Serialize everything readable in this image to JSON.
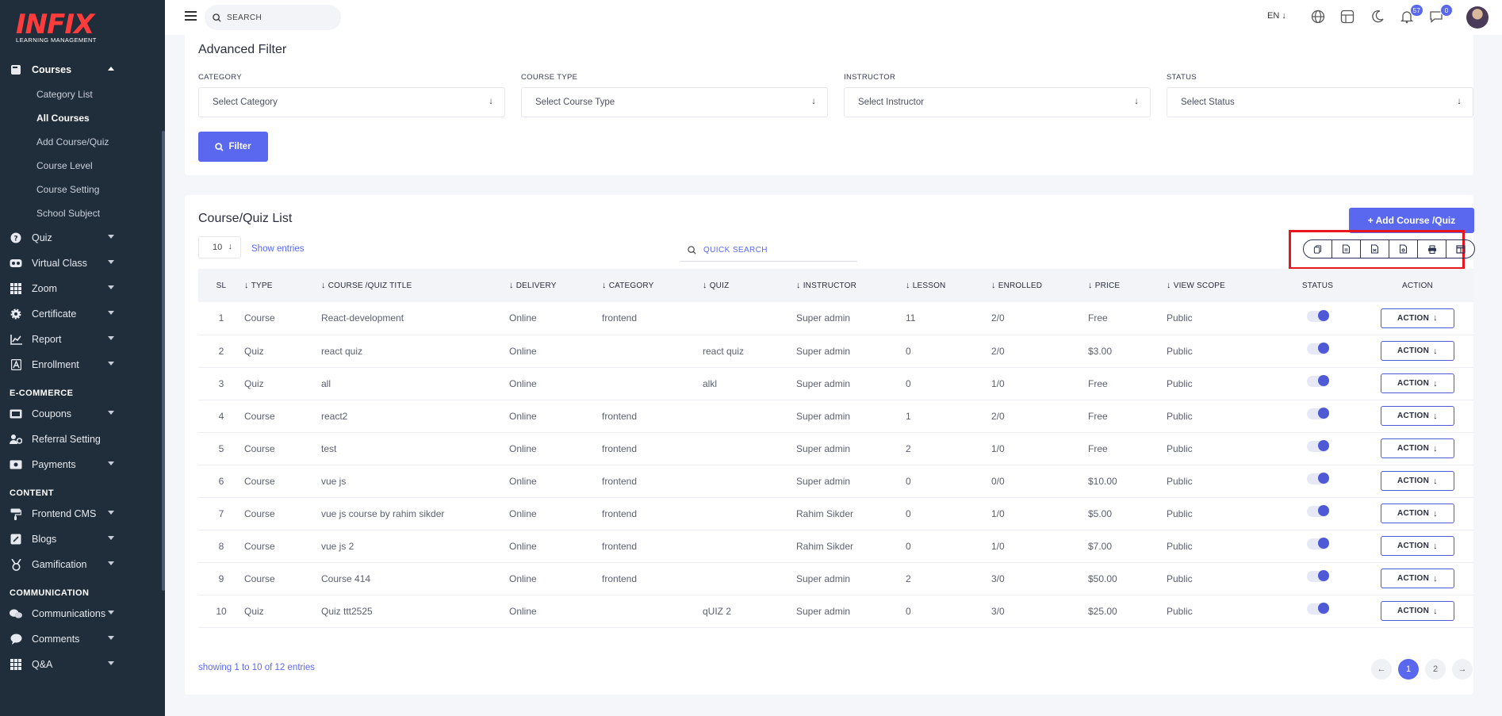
{
  "brand": {
    "logo_text": "INFIX",
    "logo_sub": "LEARNING MANAGEMENT"
  },
  "sidebar": {
    "courses": {
      "label": "Courses",
      "items": [
        "Category List",
        "All Courses",
        "Add Course/Quiz",
        "Course Level",
        "Course Setting",
        "School Subject"
      ]
    },
    "main_items": [
      {
        "label": "Quiz",
        "icon": "help-circle-icon"
      },
      {
        "label": "Virtual Class",
        "icon": "vr-icon"
      },
      {
        "label": "Zoom",
        "icon": "grid-icon"
      },
      {
        "label": "Certificate",
        "icon": "gear-icon"
      },
      {
        "label": "Report",
        "icon": "chart-icon"
      },
      {
        "label": "Enrollment",
        "icon": "enroll-icon"
      }
    ],
    "ecommerce_title": "E-COMMERCE",
    "ecommerce_items": [
      {
        "label": "Coupons",
        "caret": true
      },
      {
        "label": "Referral Setting",
        "caret": false
      },
      {
        "label": "Payments",
        "caret": true
      }
    ],
    "content_title": "CONTENT",
    "content_items": [
      {
        "label": "Frontend CMS"
      },
      {
        "label": "Blogs"
      },
      {
        "label": "Gamification"
      }
    ],
    "communication_title": "COMMUNICATION",
    "communication_items": [
      {
        "label": "Communications"
      },
      {
        "label": "Comments"
      },
      {
        "label": "Q&A"
      }
    ]
  },
  "topbar": {
    "search_placeholder": "SEARCH",
    "language": "EN",
    "notifications_count": "57",
    "messages_count": "0"
  },
  "filter": {
    "title": "Advanced Filter",
    "fields": [
      {
        "label": "CATEGORY",
        "placeholder": "Select Category"
      },
      {
        "label": "COURSE TYPE",
        "placeholder": "Select Course Type"
      },
      {
        "label": "INSTRUCTOR",
        "placeholder": "Select Instructor"
      },
      {
        "label": "STATUS",
        "placeholder": "Select Status"
      }
    ],
    "button": "Filter"
  },
  "list": {
    "title": "Course/Quiz List",
    "add_button": "+ Add Course /Quiz",
    "entries_value": "10",
    "entries_label": "Show entries",
    "quick_search": "QUICK SEARCH",
    "export_buttons": [
      "copy-icon",
      "csv-icon",
      "excel-icon",
      "pdf-icon",
      "print-icon",
      "columns-icon"
    ],
    "columns": [
      "SL",
      "TYPE",
      "COURSE /QUIZ TITLE",
      "DELIVERY",
      "CATEGORY",
      "QUIZ",
      "INSTRUCTOR",
      "LESSON",
      "ENROLLED",
      "PRICE",
      "VIEW SCOPE",
      "STATUS",
      "ACTION"
    ],
    "rows": [
      {
        "sl": "1",
        "type": "Course",
        "title": "React-development",
        "delivery": "Online",
        "category": "frontend",
        "quiz": "",
        "instructor": "Super admin",
        "lesson": "11",
        "enrolled": "2/0",
        "price": "Free",
        "scope": "Public"
      },
      {
        "sl": "2",
        "type": "Quiz",
        "title": "react quiz",
        "delivery": "Online",
        "category": "",
        "quiz": "react quiz",
        "instructor": "Super admin",
        "lesson": "0",
        "enrolled": "2/0",
        "price": "$3.00",
        "scope": "Public"
      },
      {
        "sl": "3",
        "type": "Quiz",
        "title": "all",
        "delivery": "Online",
        "category": "",
        "quiz": "alkl",
        "instructor": "Super admin",
        "lesson": "0",
        "enrolled": "1/0",
        "price": "Free",
        "scope": "Public"
      },
      {
        "sl": "4",
        "type": "Course",
        "title": "react2",
        "delivery": "Online",
        "category": "frontend",
        "quiz": "",
        "instructor": "Super admin",
        "lesson": "1",
        "enrolled": "2/0",
        "price": "Free",
        "scope": "Public"
      },
      {
        "sl": "5",
        "type": "Course",
        "title": "test",
        "delivery": "Online",
        "category": "frontend",
        "quiz": "",
        "instructor": "Super admin",
        "lesson": "2",
        "enrolled": "1/0",
        "price": "Free",
        "scope": "Public"
      },
      {
        "sl": "6",
        "type": "Course",
        "title": "vue js",
        "delivery": "Online",
        "category": "frontend",
        "quiz": "",
        "instructor": "Super admin",
        "lesson": "0",
        "enrolled": "0/0",
        "price": "$10.00",
        "scope": "Public"
      },
      {
        "sl": "7",
        "type": "Course",
        "title": "vue js course by rahim sikder",
        "delivery": "Online",
        "category": "frontend",
        "quiz": "",
        "instructor": "Rahim Sikder",
        "lesson": "0",
        "enrolled": "1/0",
        "price": "$5.00",
        "scope": "Public"
      },
      {
        "sl": "8",
        "type": "Course",
        "title": "vue js 2",
        "delivery": "Online",
        "category": "frontend",
        "quiz": "",
        "instructor": "Rahim Sikder",
        "lesson": "0",
        "enrolled": "1/0",
        "price": "$7.00",
        "scope": "Public"
      },
      {
        "sl": "9",
        "type": "Course",
        "title": "Course 414",
        "delivery": "Online",
        "category": "frontend",
        "quiz": "",
        "instructor": "Super admin",
        "lesson": "2",
        "enrolled": "3/0",
        "price": "$50.00",
        "scope": "Public"
      },
      {
        "sl": "10",
        "type": "Quiz",
        "title": "Quiz ttt2525",
        "delivery": "Online",
        "category": "",
        "quiz": "qUIZ 2",
        "instructor": "Super admin",
        "lesson": "0",
        "enrolled": "3/0",
        "price": "$25.00",
        "scope": "Public"
      }
    ],
    "action_label": "ACTION",
    "showing": "showing 1 to 10 of 12 entries",
    "pages": [
      "1",
      "2"
    ],
    "current_page": "1"
  },
  "colors": {
    "sidebar_bg": "#202e3b",
    "accent": "#5a68f0",
    "highlight": "#e8141e",
    "logo": "#ff3c3c"
  }
}
